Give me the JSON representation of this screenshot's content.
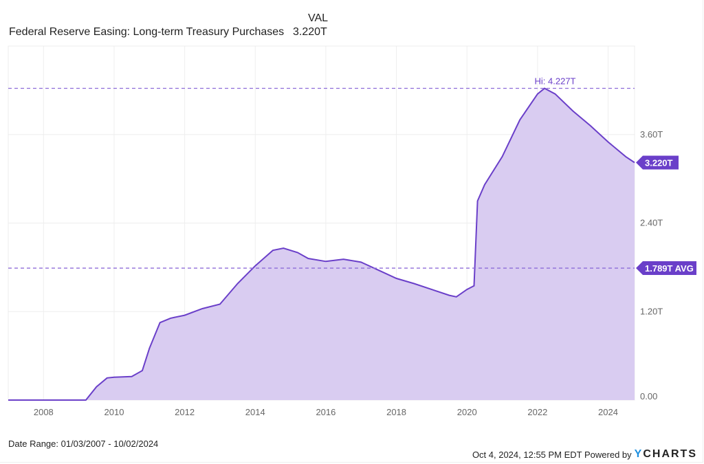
{
  "legend": {
    "column_header": "VAL",
    "series_name": "Federal Reserve Easing: Long-term Treasury Purchases",
    "series_value": "3.220T"
  },
  "annotations": {
    "high_label": "Hi: 4.227T",
    "current_label": "3.220T",
    "average_label": "1.789T AVG"
  },
  "footer": {
    "date_range": "Date Range: 01/03/2007 - 10/02/2024",
    "timestamp": "Oct 4, 2024, 12:55 PM EDT Powered by",
    "brand_y": "Y",
    "brand_rest": "CHARTS"
  },
  "colors": {
    "line": "#6a3fc9",
    "fill": "#d9ccf1",
    "label_bg": "#6a3fc9",
    "grid": "#eeeeee",
    "axis_text": "#666666"
  },
  "chart_data": {
    "type": "area",
    "title": "Federal Reserve Easing: Long-term Treasury Purchases",
    "xlabel": "",
    "ylabel": "",
    "x_ticks": [
      "2008",
      "2010",
      "2012",
      "2014",
      "2016",
      "2018",
      "2020",
      "2022",
      "2024"
    ],
    "y_ticks": [
      "0.00",
      "1.20T",
      "2.40T",
      "3.60T"
    ],
    "ylim": [
      0,
      4.8
    ],
    "xlim": [
      "2007-01-03",
      "2024-10-02"
    ],
    "grid": true,
    "legend_position": "top-left",
    "y_axis_position": "right",
    "unit": "Trillions USD",
    "high": 4.227,
    "average": 1.789,
    "latest": 3.22,
    "series": [
      {
        "name": "Federal Reserve Easing: Long-term Treasury Purchases",
        "x": [
          2007.0,
          2008.0,
          2009.0,
          2009.2,
          2009.5,
          2009.8,
          2010.0,
          2010.5,
          2010.8,
          2011.0,
          2011.3,
          2011.6,
          2012.0,
          2012.5,
          2013.0,
          2013.5,
          2014.0,
          2014.5,
          2014.8,
          2015.2,
          2015.5,
          2016.0,
          2016.5,
          2017.0,
          2017.5,
          2018.0,
          2018.5,
          2019.0,
          2019.5,
          2019.7,
          2020.0,
          2020.2,
          2020.3,
          2020.5,
          2021.0,
          2021.5,
          2022.0,
          2022.2,
          2022.5,
          2023.0,
          2023.5,
          2024.0,
          2024.5,
          2024.75
        ],
        "values": [
          0.0,
          0.0,
          0.0,
          0.0,
          0.18,
          0.3,
          0.31,
          0.32,
          0.4,
          0.7,
          1.05,
          1.11,
          1.15,
          1.24,
          1.3,
          1.58,
          1.82,
          2.03,
          2.06,
          2.0,
          1.92,
          1.88,
          1.91,
          1.87,
          1.76,
          1.65,
          1.58,
          1.5,
          1.42,
          1.4,
          1.5,
          1.55,
          2.7,
          2.92,
          3.3,
          3.8,
          4.15,
          4.227,
          4.15,
          3.92,
          3.72,
          3.5,
          3.3,
          3.22
        ]
      }
    ]
  }
}
